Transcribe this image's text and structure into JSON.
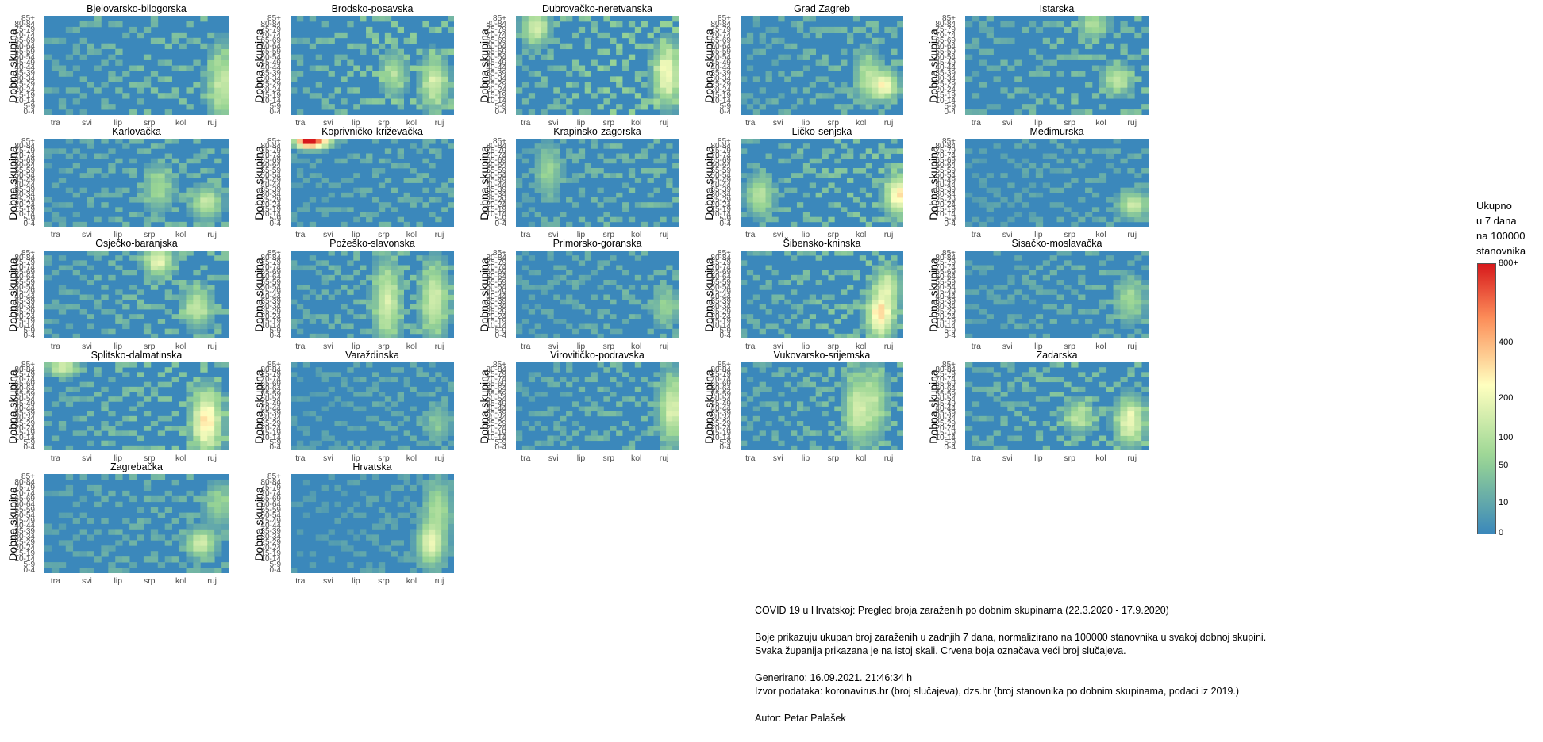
{
  "colors": {
    "low": "#3b88bb",
    "mid_low": "#99d594",
    "mid": "#ffffbf",
    "mid_high": "#fc8d59",
    "high": "#d7191c"
  },
  "y_axis_label": "Dobna skupina",
  "age_groups": [
    "0-4",
    "5-9",
    "10-14",
    "15-19",
    "20-24",
    "25-29",
    "30-34",
    "35-39",
    "40-44",
    "45-49",
    "50-54",
    "55-59",
    "60-64",
    "65-69",
    "70-74",
    "75-79",
    "80-84",
    "85+"
  ],
  "months": [
    "tra",
    "svi",
    "lip",
    "srp",
    "kol",
    "ruj"
  ],
  "legend": {
    "title_lines": [
      "Ukupno",
      "u 7 dana",
      "na 100000",
      "stanovnika"
    ],
    "ticks": [
      "0",
      "10",
      "50",
      "100",
      "200",
      "400",
      "800+"
    ]
  },
  "caption": {
    "line1": "COVID 19 u Hrvatskoj: Pregled broja zaraženih po dobnim skupinama (22.3.2020 - 17.9.2020)",
    "line2": "Boje prikazuju ukupan broj zaraženih u zadnjih 7 dana, normalizirano na 100000 stanovnika u svakoj dobnoj skupini.",
    "line3": "Svaka županija prikazana je na istoj skali. Crvena boja označava veći broj slučajeva.",
    "line4": "Generirano: 16.09.2021. 21:46:34 h",
    "line5": "Izvor podataka: koronavirus.hr (broj slučajeva), dzs.hr (broj stanovnika po dobnim skupinama, podaci iz 2019.)",
    "line6": "Autor: Petar Palašek"
  },
  "chart_data": {
    "type": "heatmap",
    "x_range": [
      "22.3.2020",
      "17.9.2020"
    ],
    "color_scale": {
      "min": 0,
      "max": 800,
      "ticks": [
        0,
        10,
        50,
        100,
        200,
        400,
        800
      ],
      "top_label": "800+"
    },
    "panels": [
      {
        "name": "Bjelovarsko-bilogorska",
        "hot": [
          {
            "t": 0.97,
            "a": [
              1,
              9
            ],
            "v": 120
          }
        ],
        "noise": 30
      },
      {
        "name": "Brodsko-posavska",
        "hot": [
          {
            "t": 0.88,
            "a": [
              3,
              8
            ],
            "v": 140
          },
          {
            "t": 0.63,
            "a": [
              5,
              9
            ],
            "v": 80
          }
        ],
        "noise": 40
      },
      {
        "name": "Dubrovačko-neretvanska",
        "hot": [
          {
            "t": 0.93,
            "a": [
              4,
              10
            ],
            "v": 220
          },
          {
            "t": 0.12,
            "a": [
              14,
              17
            ],
            "v": 150
          }
        ],
        "noise": 45
      },
      {
        "name": "Grad Zagreb",
        "hot": [
          {
            "t": 0.88,
            "a": [
              4,
              6
            ],
            "v": 250
          },
          {
            "t": 0.78,
            "a": [
              4,
              9
            ],
            "v": 90
          }
        ],
        "noise": 25
      },
      {
        "name": "Istarska",
        "hot": [
          {
            "t": 0.83,
            "a": [
              5,
              7
            ],
            "v": 120
          },
          {
            "t": 0.7,
            "a": [
              15,
              17
            ],
            "v": 90
          }
        ],
        "noise": 30
      },
      {
        "name": "Karlovačka",
        "hot": [
          {
            "t": 0.88,
            "a": [
              3,
              6
            ],
            "v": 120
          },
          {
            "t": 0.62,
            "a": [
              5,
              10
            ],
            "v": 70
          }
        ],
        "noise": 25
      },
      {
        "name": "Koprivničko-križevačka",
        "hot": [
          {
            "t": 0.11,
            "a": [
              17,
              17
            ],
            "v": 800
          },
          {
            "t": 0.18,
            "a": [
              17,
              17
            ],
            "v": 300
          }
        ],
        "noise": 20
      },
      {
        "name": "Krapinsko-zagorska",
        "hot": [
          {
            "t": 0.2,
            "a": [
              8,
              14
            ],
            "v": 60
          }
        ],
        "noise": 25
      },
      {
        "name": "Ličko-senjska",
        "hot": [
          {
            "t": 0.97,
            "a": [
              4,
              8
            ],
            "v": 280
          },
          {
            "t": 0.12,
            "a": [
              4,
              8
            ],
            "v": 110
          }
        ],
        "noise": 35
      },
      {
        "name": "Međimurska",
        "hot": [
          {
            "t": 0.92,
            "a": [
              3,
              5
            ],
            "v": 140
          }
        ],
        "noise": 15
      },
      {
        "name": "Osječko-baranjska",
        "hot": [
          {
            "t": 0.62,
            "a": [
              14,
              17
            ],
            "v": 180
          },
          {
            "t": 0.83,
            "a": [
              4,
              8
            ],
            "v": 120
          }
        ],
        "noise": 30
      },
      {
        "name": "Požeško-slavonska",
        "hot": [
          {
            "t": 0.59,
            "a": [
              2,
              12
            ],
            "v": 150
          },
          {
            "t": 0.88,
            "a": [
              3,
              12
            ],
            "v": 150
          }
        ],
        "noise": 30
      },
      {
        "name": "Primorsko-goranska",
        "hot": [
          {
            "t": 0.92,
            "a": [
              4,
              8
            ],
            "v": 60
          }
        ],
        "noise": 20
      },
      {
        "name": "Šibensko-kninska",
        "hot": [
          {
            "t": 0.86,
            "a": [
              2,
              7
            ],
            "v": 320
          },
          {
            "t": 0.9,
            "a": [
              8,
              12
            ],
            "v": 150
          }
        ],
        "noise": 35
      },
      {
        "name": "Sisačko-moslavačka",
        "hot": [
          {
            "t": 0.9,
            "a": [
              5,
              10
            ],
            "v": 70
          }
        ],
        "noise": 20
      },
      {
        "name": "Splitsko-dalmatinska",
        "hot": [
          {
            "t": 0.88,
            "a": [
              2,
              9
            ],
            "v": 300
          },
          {
            "t": 0.1,
            "a": [
              16,
              17
            ],
            "v": 160
          }
        ],
        "noise": 35
      },
      {
        "name": "Varaždinska",
        "hot": [
          {
            "t": 0.9,
            "a": [
              3,
              7
            ],
            "v": 40
          }
        ],
        "noise": 15
      },
      {
        "name": "Virovitičko-podravska",
        "hot": [
          {
            "t": 0.96,
            "a": [
              4,
              12
            ],
            "v": 160
          }
        ],
        "noise": 25
      },
      {
        "name": "Vukovarsko-srijemska",
        "hot": [
          {
            "t": 0.72,
            "a": [
              4,
              12
            ],
            "v": 150
          },
          {
            "t": 0.82,
            "a": [
              5,
              14
            ],
            "v": 90
          }
        ],
        "noise": 30
      },
      {
        "name": "Zadarska",
        "hot": [
          {
            "t": 0.9,
            "a": [
              3,
              8
            ],
            "v": 200
          },
          {
            "t": 0.62,
            "a": [
              5,
              8
            ],
            "v": 100
          }
        ],
        "noise": 35
      },
      {
        "name": "Zagrebačka",
        "hot": [
          {
            "t": 0.85,
            "a": [
              4,
              6
            ],
            "v": 160
          },
          {
            "t": 0.95,
            "a": [
              10,
              14
            ],
            "v": 60
          }
        ],
        "noise": 20
      },
      {
        "name": "Hrvatska",
        "hot": [
          {
            "t": 0.86,
            "a": [
              3,
              7
            ],
            "v": 200
          },
          {
            "t": 0.9,
            "a": [
              8,
              14
            ],
            "v": 90
          }
        ],
        "noise": 10
      }
    ]
  }
}
